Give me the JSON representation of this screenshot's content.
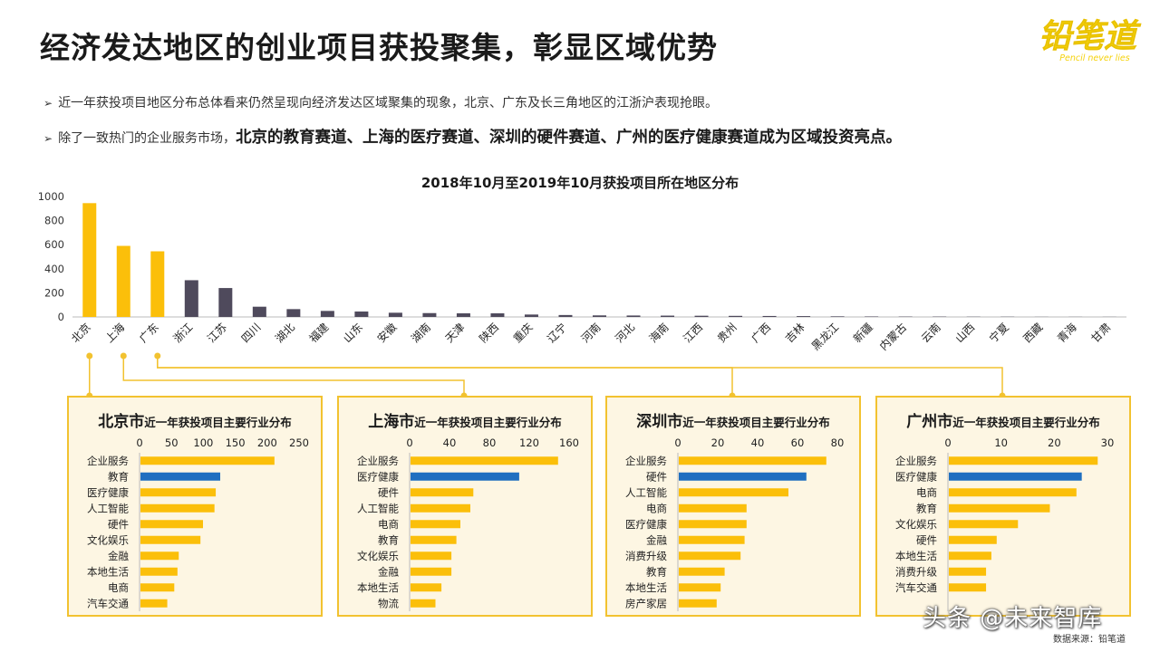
{
  "title": "经济发达地区的创业项目获投聚集，彰显区域优势",
  "logo": {
    "main": "铅笔道",
    "tagline": "Pencil never lies"
  },
  "bullets": [
    {
      "text": "近一年获投项目地区分布总体看来仍然呈现向经济发达区域聚集的现象，北京、广东及长三角地区的江浙沪表现抢眼。"
    },
    {
      "lead": "除了一致热门的企业服务市场，",
      "strong": "北京的教育赛道、上海的医疗赛道、深圳的硬件赛道、广州的医疗健康赛道成为区域投资亮点。"
    }
  ],
  "colors": {
    "accent": "#fbbf0a",
    "gray": "#4f4a5c",
    "highlight": "#1f6fc0",
    "panel_border": "#f2c230",
    "panel_bg": "#fdf6e3"
  },
  "chart_data": [
    {
      "type": "bar",
      "title": "2018年10月至2019年10月获投项目所在地区分布",
      "categories": [
        "北京",
        "上海",
        "广东",
        "浙江",
        "江苏",
        "四川",
        "湖北",
        "福建",
        "山东",
        "安徽",
        "湖南",
        "天津",
        "陕西",
        "重庆",
        "辽宁",
        "河南",
        "河北",
        "海南",
        "江西",
        "贵州",
        "广西",
        "吉林",
        "黑龙江",
        "新疆",
        "内蒙古",
        "云南",
        "山西",
        "宁夏",
        "西藏",
        "青海",
        "甘肃"
      ],
      "values": [
        945,
        590,
        545,
        305,
        240,
        85,
        65,
        50,
        45,
        35,
        32,
        30,
        30,
        20,
        16,
        13,
        12,
        11,
        10,
        9,
        8,
        7,
        5,
        4,
        3,
        3,
        2,
        2,
        1,
        1,
        1
      ],
      "highlighted_count": 3,
      "ylim": [
        0,
        1000
      ],
      "yticks": [
        0,
        200,
        400,
        600,
        800,
        1000
      ],
      "grid": false
    },
    {
      "type": "bar",
      "orientation": "horizontal",
      "city": "北京市",
      "subtitle": "近一年获投项目主要行业分布",
      "categories": [
        "企业服务",
        "教育",
        "医疗健康",
        "人工智能",
        "硬件",
        "文化娱乐",
        "金融",
        "本地生活",
        "电商",
        "汽车交通"
      ],
      "values": [
        210,
        125,
        118,
        116,
        98,
        94,
        60,
        58,
        53,
        42
      ],
      "highlight_index": 1,
      "xlim": [
        0,
        250
      ],
      "xticks": [
        0,
        50,
        100,
        150,
        200,
        250
      ]
    },
    {
      "type": "bar",
      "orientation": "horizontal",
      "city": "上海市",
      "subtitle": "近一年获投项目主要行业分布",
      "categories": [
        "企业服务",
        "医疗健康",
        "硬件",
        "人工智能",
        "电商",
        "教育",
        "文化娱乐",
        "金融",
        "本地生活",
        "物流"
      ],
      "values": [
        148,
        109,
        63,
        60,
        50,
        46,
        41,
        41,
        31,
        25
      ],
      "highlight_index": 1,
      "xlim": [
        0,
        160
      ],
      "xticks": [
        0,
        40,
        80,
        120,
        160
      ]
    },
    {
      "type": "bar",
      "orientation": "horizontal",
      "city": "深圳市",
      "subtitle": "近一年获投项目主要行业分布",
      "categories": [
        "企业服务",
        "硬件",
        "人工智能",
        "电商",
        "医疗健康",
        "金融",
        "消费升级",
        "教育",
        "本地生活",
        "房产家居"
      ],
      "values": [
        74,
        64,
        55,
        34,
        34,
        33,
        31,
        23,
        21,
        19
      ],
      "highlight_index": 1,
      "xlim": [
        0,
        80
      ],
      "xticks": [
        0,
        20,
        40,
        60,
        80
      ]
    },
    {
      "type": "bar",
      "orientation": "horizontal",
      "city": "广州市",
      "subtitle": "近一年获投项目主要行业分布",
      "categories": [
        "企业服务",
        "医疗健康",
        "电商",
        "教育",
        "文化娱乐",
        "硬件",
        "本地生活",
        "消费升级",
        "汽车交通"
      ],
      "values": [
        28,
        25,
        24,
        19,
        13,
        9,
        8,
        7,
        7
      ],
      "highlight_index": 1,
      "xlim": [
        0,
        30
      ],
      "xticks": [
        0,
        10,
        20,
        30
      ]
    }
  ],
  "source": "数据来源：铅笔道",
  "watermark": "头条 @未来智库"
}
